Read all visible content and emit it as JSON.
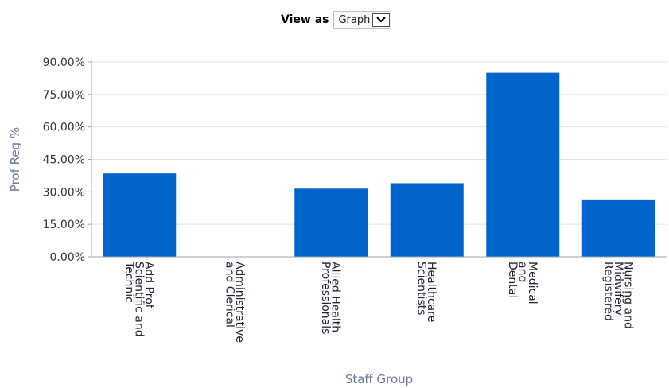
{
  "view_as": {
    "label": "View as",
    "selected": "Graph",
    "dropdown_icon": "chevron-down-icon"
  },
  "colors": {
    "bar": "#0066cc",
    "grid": "#dfe3e8",
    "axis": "#9aa3ad",
    "axis_title": "#6b7797"
  },
  "chart_data": {
    "type": "bar",
    "title": "",
    "xlabel": "Staff Group",
    "ylabel": "Prof Reg %",
    "ylim": [
      0,
      90
    ],
    "yticks": [
      0,
      15,
      30,
      45,
      60,
      75,
      90
    ],
    "ytick_labels": [
      "0.00%",
      "15.00%",
      "30.00%",
      "45.00%",
      "60.00%",
      "75.00%",
      "90.00%"
    ],
    "grid": true,
    "categories": [
      [
        "Add Prof",
        "Scientific and",
        "Technic"
      ],
      [
        "Administrative",
        "and Clerical"
      ],
      [
        "Allied Health",
        "Professionals"
      ],
      [
        "Healthcare",
        "Scientists"
      ],
      [
        "Medical",
        "and",
        "Dental"
      ],
      [
        "Nursing and",
        "Midwifery",
        "Registered"
      ]
    ],
    "values": [
      38.5,
      0,
      31.5,
      34,
      85,
      26.5
    ]
  }
}
